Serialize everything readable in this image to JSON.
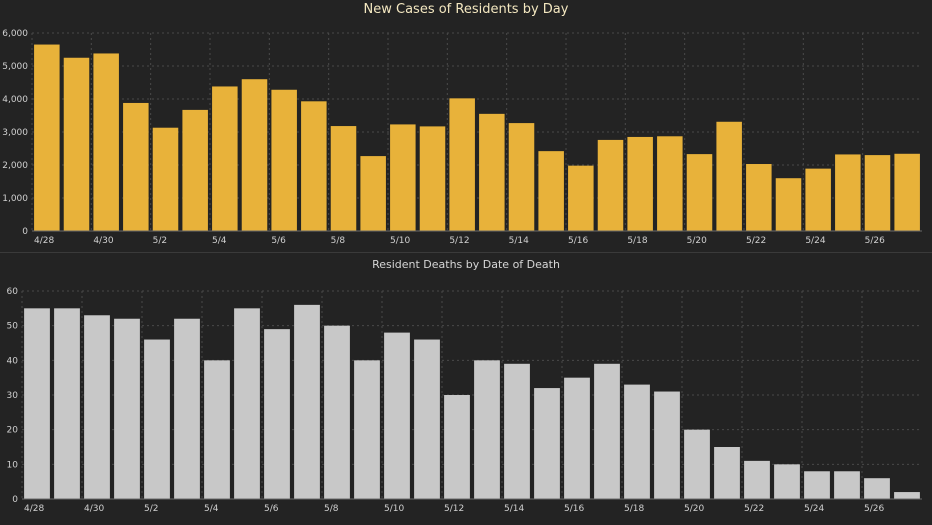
{
  "chart_data": [
    {
      "type": "bar",
      "title": "New Cases of Residents by Day",
      "bar_color": "#e8b23a",
      "ylim": [
        0,
        6000
      ],
      "yticks": [
        0,
        1000,
        2000,
        3000,
        4000,
        5000,
        6000
      ],
      "ytick_labels": [
        "0",
        "1,000",
        "2,000",
        "3,000",
        "4,000",
        "5,000",
        "6,000"
      ],
      "categories": [
        "4/28",
        "4/29",
        "4/30",
        "5/1",
        "5/2",
        "5/3",
        "5/4",
        "5/5",
        "5/6",
        "5/7",
        "5/8",
        "5/9",
        "5/10",
        "5/11",
        "5/12",
        "5/13",
        "5/14",
        "5/15",
        "5/16",
        "5/17",
        "5/18",
        "5/19",
        "5/20",
        "5/21",
        "5/22",
        "5/23",
        "5/24",
        "5/25",
        "5/26",
        "5/27"
      ],
      "xtick_labels": [
        "4/28",
        "4/30",
        "5/2",
        "5/4",
        "5/6",
        "5/8",
        "5/10",
        "5/12",
        "5/14",
        "5/16",
        "5/18",
        "5/20",
        "5/22",
        "5/24",
        "5/26"
      ],
      "values": [
        5650,
        5250,
        5380,
        3880,
        3130,
        3670,
        4380,
        4600,
        4280,
        3930,
        3180,
        2270,
        3230,
        3170,
        4020,
        3550,
        3270,
        2420,
        1980,
        2760,
        2850,
        2870,
        2330,
        3310,
        2030,
        1600,
        1890,
        2320,
        2300,
        2340
      ],
      "grid": true
    },
    {
      "type": "bar",
      "title": "Resident Deaths by Date of Death",
      "bar_color": "#c8c8c8",
      "ylim": [
        0,
        60
      ],
      "yticks": [
        0,
        10,
        20,
        30,
        40,
        50,
        60
      ],
      "ytick_labels": [
        "0",
        "10",
        "20",
        "30",
        "40",
        "50",
        "60"
      ],
      "categories": [
        "4/28",
        "4/29",
        "4/30",
        "5/1",
        "5/2",
        "5/3",
        "5/4",
        "5/5",
        "5/6",
        "5/7",
        "5/8",
        "5/9",
        "5/10",
        "5/11",
        "5/12",
        "5/13",
        "5/14",
        "5/15",
        "5/16",
        "5/17",
        "5/18",
        "5/19",
        "5/20",
        "5/21",
        "5/22",
        "5/23",
        "5/24",
        "5/25",
        "5/26",
        "5/27"
      ],
      "xtick_labels": [
        "4/28",
        "4/30",
        "5/2",
        "5/4",
        "5/6",
        "5/8",
        "5/10",
        "5/12",
        "5/14",
        "5/16",
        "5/18",
        "5/20",
        "5/22",
        "5/24",
        "5/26"
      ],
      "values": [
        55,
        55,
        53,
        52,
        46,
        52,
        40,
        55,
        49,
        56,
        50,
        40,
        48,
        46,
        30,
        40,
        39,
        32,
        35,
        39,
        33,
        31,
        20,
        15,
        11,
        10,
        8,
        8,
        6,
        2
      ],
      "grid": true
    }
  ]
}
